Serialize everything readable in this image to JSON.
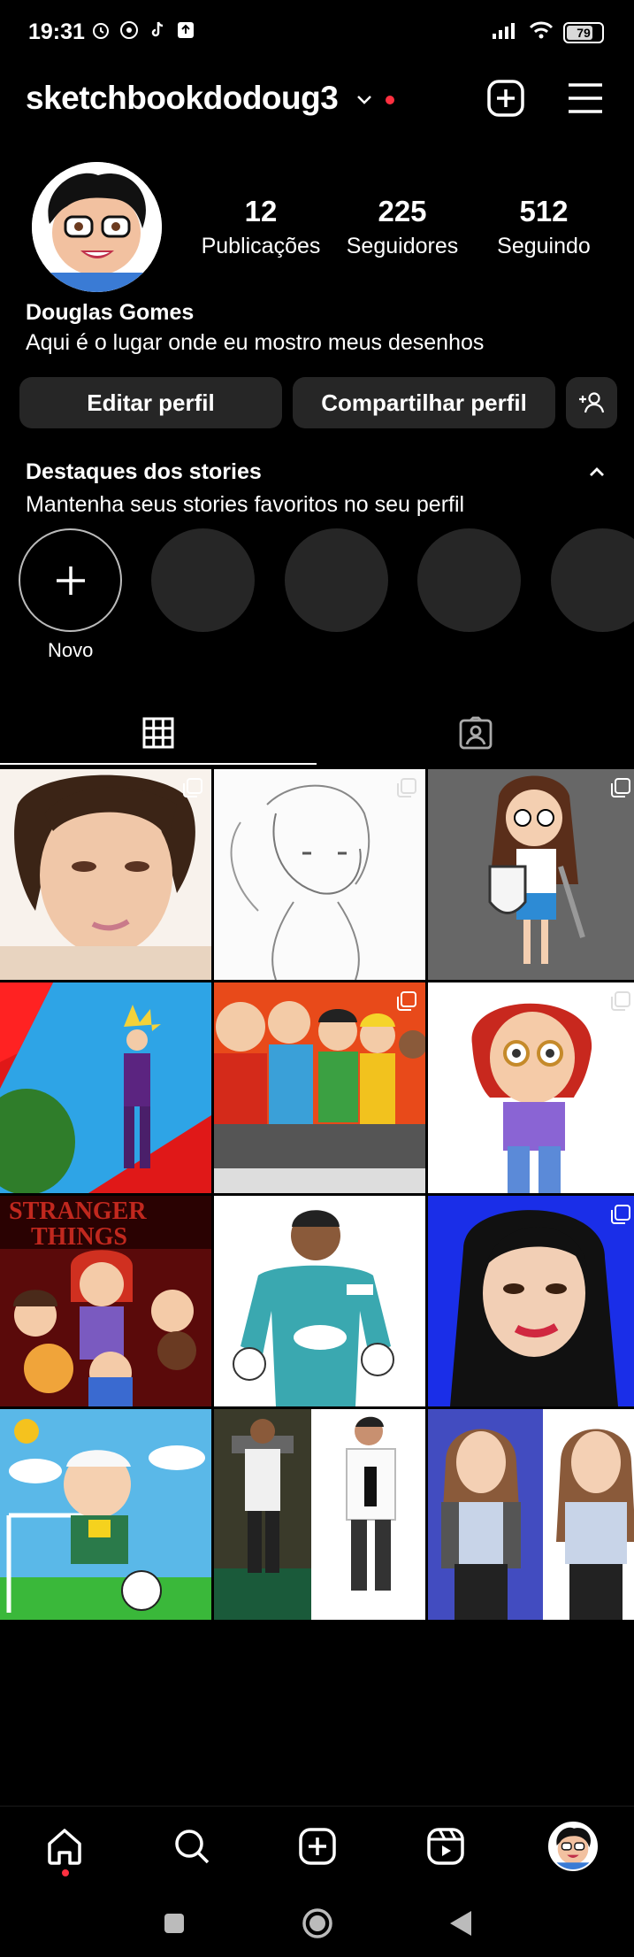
{
  "status": {
    "time": "19:31",
    "battery": "79"
  },
  "header": {
    "username": "sketchbookdodoug3"
  },
  "profile": {
    "stats": [
      {
        "num": "12",
        "label": "Publicações"
      },
      {
        "num": "225",
        "label": "Seguidores"
      },
      {
        "num": "512",
        "label": "Seguindo"
      }
    ],
    "name": "Douglas Gomes",
    "bio": "Aqui é o lugar onde eu mostro meus desenhos"
  },
  "actions": {
    "edit": "Editar perfil",
    "share": "Compartilhar perfil"
  },
  "highlights": {
    "title": "Destaques dos stories",
    "subtitle": "Mantenha seus stories favoritos no seu perfil",
    "new_label": "Novo"
  },
  "grid_posts": [
    {
      "label": "Woman portrait drawing"
    },
    {
      "label": "Pencil sketch of woman"
    },
    {
      "label": "Girl with shield drawing"
    },
    {
      "label": "Anime fighter drawing"
    },
    {
      "label": "Cartoon kids group drawing"
    },
    {
      "label": "Red-haired girl drawing"
    },
    {
      "label": "Stranger Things fan art"
    },
    {
      "label": "Goalkeeper drawing"
    },
    {
      "label": "Woman with long hair drawing"
    },
    {
      "label": "Cartoon boy soccer drawing"
    },
    {
      "label": "Photo vs drawing comparison"
    },
    {
      "label": "Girl photo vs drawing"
    }
  ],
  "colors": {
    "background": "#000000",
    "button": "#262626",
    "accent_red": "#ff3040"
  }
}
